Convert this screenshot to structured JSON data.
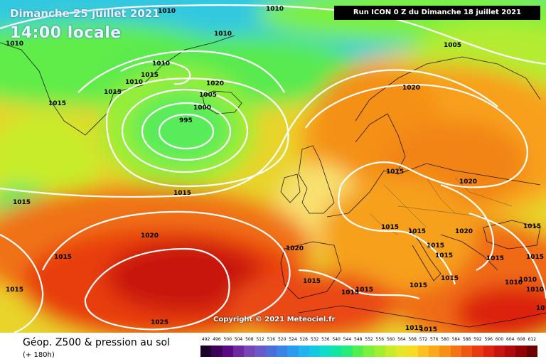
{
  "header": {
    "date": "Dimanche 25 juillet 2021",
    "time": "14:00 locale",
    "run_info": "Run ICON 0 Z du Dimanche 18 juillet 2021"
  },
  "copyright": "Copyright © 2021 Meteociel.fr",
  "legend": {
    "title": "Géop. Z500 & pression au sol",
    "subtitle": "(+ 180h)",
    "scale_labels": [
      "492",
      "496",
      "500",
      "504",
      "508",
      "512",
      "516",
      "520",
      "524",
      "528",
      "532",
      "536",
      "540",
      "544",
      "548",
      "552",
      "556",
      "560",
      "564",
      "568",
      "572",
      "576",
      "580",
      "584",
      "588",
      "592",
      "596",
      "600",
      "604",
      "608",
      "612"
    ],
    "scale_colors": [
      "#1a0028",
      "#3c005a",
      "#5a0a82",
      "#6e28a0",
      "#7846b4",
      "#6a5ac8",
      "#4c6ed8",
      "#3a84e6",
      "#2a9cf0",
      "#1eb4f0",
      "#14c8e0",
      "#10dcc8",
      "#12e6a0",
      "#28ec78",
      "#50f050",
      "#7cf03c",
      "#a4ee32",
      "#c8ec2c",
      "#e6e628",
      "#f8dc24",
      "#fcc020",
      "#fca81e",
      "#f89018",
      "#f47414",
      "#ee5812",
      "#e83c10",
      "#dc2410",
      "#c81410",
      "#b00a0a",
      "#900404",
      "#6c0000"
    ]
  },
  "map": {
    "isobars": [
      {
        "label": "1010",
        "placement": "top-left"
      },
      {
        "label": "1010",
        "placement": "top-center"
      },
      {
        "label": "1005",
        "placement": "top-right"
      },
      {
        "label": "1010",
        "placement": "greenland"
      },
      {
        "label": "1015",
        "placement": "greenland"
      },
      {
        "label": "1005",
        "placement": "atlantic-low"
      },
      {
        "label": "1000",
        "placement": "atlantic-low"
      },
      {
        "label": "995",
        "placement": "atlantic-low-center"
      },
      {
        "label": "1015",
        "placement": "mid-atlantic"
      },
      {
        "label": "1020",
        "placement": "azores"
      },
      {
        "label": "1025",
        "placement": "azores-high"
      },
      {
        "label": "1020",
        "placement": "scandinavia"
      },
      {
        "label": "1015",
        "placement": "europe"
      },
      {
        "label": "1020",
        "placement": "eastern-europe"
      }
    ],
    "labels": [
      "1010",
      "1010",
      "1010",
      "1010",
      "1005",
      "1015",
      "1015",
      "1010",
      "1010",
      "1005",
      "1000",
      "995",
      "1020",
      "1015",
      "1020",
      "1015",
      "1015",
      "1020",
      "1020",
      "1015",
      "1015",
      "1015",
      "1020",
      "1015",
      "1015",
      "1015",
      "1015",
      "1015",
      "1025",
      "1020",
      "1015",
      "1015",
      "1015",
      "1015",
      "1015",
      "1015",
      "1010",
      "1010",
      "1010",
      "1015",
      "1015",
      "1015",
      "1015"
    ]
  }
}
